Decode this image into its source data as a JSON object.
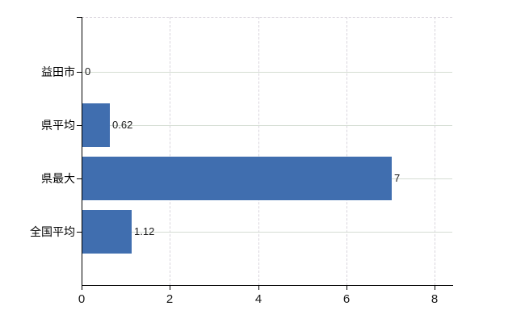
{
  "chart_data": {
    "type": "bar",
    "orientation": "horizontal",
    "title": "",
    "xlabel": "",
    "ylabel": "",
    "categories": [
      "益田市",
      "県平均",
      "県最大",
      "全国平均"
    ],
    "values": [
      0,
      0.62,
      7,
      1.12
    ],
    "data_labels": [
      "0",
      "0.62",
      "7",
      "1.12"
    ],
    "x_ticks": [
      0,
      2,
      4,
      6,
      8
    ],
    "xlim": [
      0,
      8.4
    ],
    "grid": true,
    "legend": "none",
    "bar_color": "#406EAF"
  },
  "colors": {
    "background": "#ffffff",
    "bar": "#406EAF",
    "axis": "#000000",
    "text": "#000000",
    "h_gridline": "#d5ddd3",
    "v_gridline": "#d8d4dc",
    "top_border": "#d8d4dc"
  }
}
